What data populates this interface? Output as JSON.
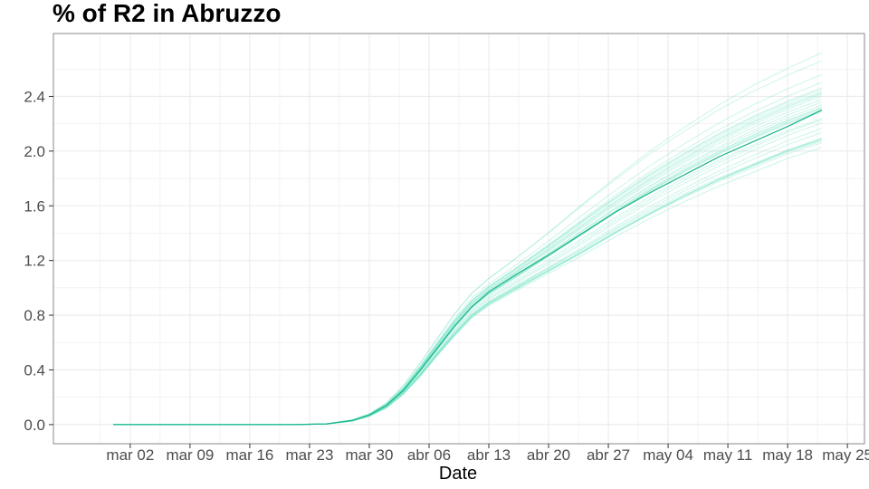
{
  "chart_data": {
    "type": "line",
    "title": "% of R2 in  Abruzzo",
    "xlabel": "Date",
    "ylabel": "",
    "x_tick_labels": [
      "mar 02",
      "mar 09",
      "mar 16",
      "mar 23",
      "mar 30",
      "abr 06",
      "abr 13",
      "abr 20",
      "abr 27",
      "may 04",
      "may 11",
      "may 18",
      "may 25"
    ],
    "x_tick_dates": [
      "2020-03-02",
      "2020-03-09",
      "2020-03-16",
      "2020-03-23",
      "2020-03-30",
      "2020-04-06",
      "2020-04-13",
      "2020-04-20",
      "2020-04-27",
      "2020-05-04",
      "2020-05-11",
      "2020-05-18",
      "2020-05-25"
    ],
    "xlim": [
      "2020-02-22",
      "2020-05-27"
    ],
    "y_tick_labels": [
      "0.0",
      "0.4",
      "0.8",
      "1.2",
      "1.6",
      "2.0",
      "2.4"
    ],
    "y_ticks": [
      0,
      0.4,
      0.8,
      1.2,
      1.6,
      2.0,
      2.4
    ],
    "ylim": [
      -0.14,
      2.86
    ],
    "grid": true,
    "legend": "none",
    "colors": {
      "main_line": "#1db58e",
      "ensemble_line": "#6fe3c2",
      "grid": "#ebebeb",
      "panel_border": "#8a8a8a"
    },
    "series": [
      {
        "role": "central-estimate",
        "x": [
          "2020-02-29",
          "2020-03-07",
          "2020-03-14",
          "2020-03-21",
          "2020-03-25",
          "2020-03-28",
          "2020-03-30",
          "2020-04-01",
          "2020-04-03",
          "2020-04-05",
          "2020-04-07",
          "2020-04-09",
          "2020-04-11",
          "2020-04-13",
          "2020-04-16",
          "2020-04-20",
          "2020-04-24",
          "2020-04-28",
          "2020-05-02",
          "2020-05-06",
          "2020-05-10",
          "2020-05-14",
          "2020-05-18",
          "2020-05-22"
        ],
        "y": [
          0,
          0,
          0,
          0,
          0.005,
          0.03,
          0.07,
          0.14,
          0.25,
          0.4,
          0.56,
          0.72,
          0.86,
          0.97,
          1.09,
          1.24,
          1.4,
          1.56,
          1.7,
          1.83,
          1.96,
          2.07,
          2.18,
          2.3
        ]
      }
    ],
    "ensemble": {
      "count": 30,
      "x": [
        "2020-02-29",
        "2020-03-07",
        "2020-03-14",
        "2020-03-21",
        "2020-03-25",
        "2020-03-28",
        "2020-03-30",
        "2020-04-01",
        "2020-04-03",
        "2020-04-05",
        "2020-04-07",
        "2020-04-09",
        "2020-04-11",
        "2020-04-13",
        "2020-04-16",
        "2020-04-20",
        "2020-04-24",
        "2020-04-28",
        "2020-05-02",
        "2020-05-06",
        "2020-05-10",
        "2020-05-14",
        "2020-05-18",
        "2020-05-22"
      ],
      "y_low": [
        0,
        0,
        0,
        0,
        0.004,
        0.025,
        0.06,
        0.12,
        0.22,
        0.35,
        0.5,
        0.64,
        0.77,
        0.86,
        0.96,
        1.09,
        1.22,
        1.36,
        1.49,
        1.61,
        1.72,
        1.82,
        1.92,
        2.0
      ],
      "y_high": [
        0,
        0,
        0,
        0,
        0.006,
        0.035,
        0.08,
        0.16,
        0.29,
        0.46,
        0.64,
        0.82,
        0.97,
        1.08,
        1.22,
        1.42,
        1.63,
        1.83,
        2.02,
        2.19,
        2.35,
        2.49,
        2.61,
        2.72
      ]
    }
  }
}
